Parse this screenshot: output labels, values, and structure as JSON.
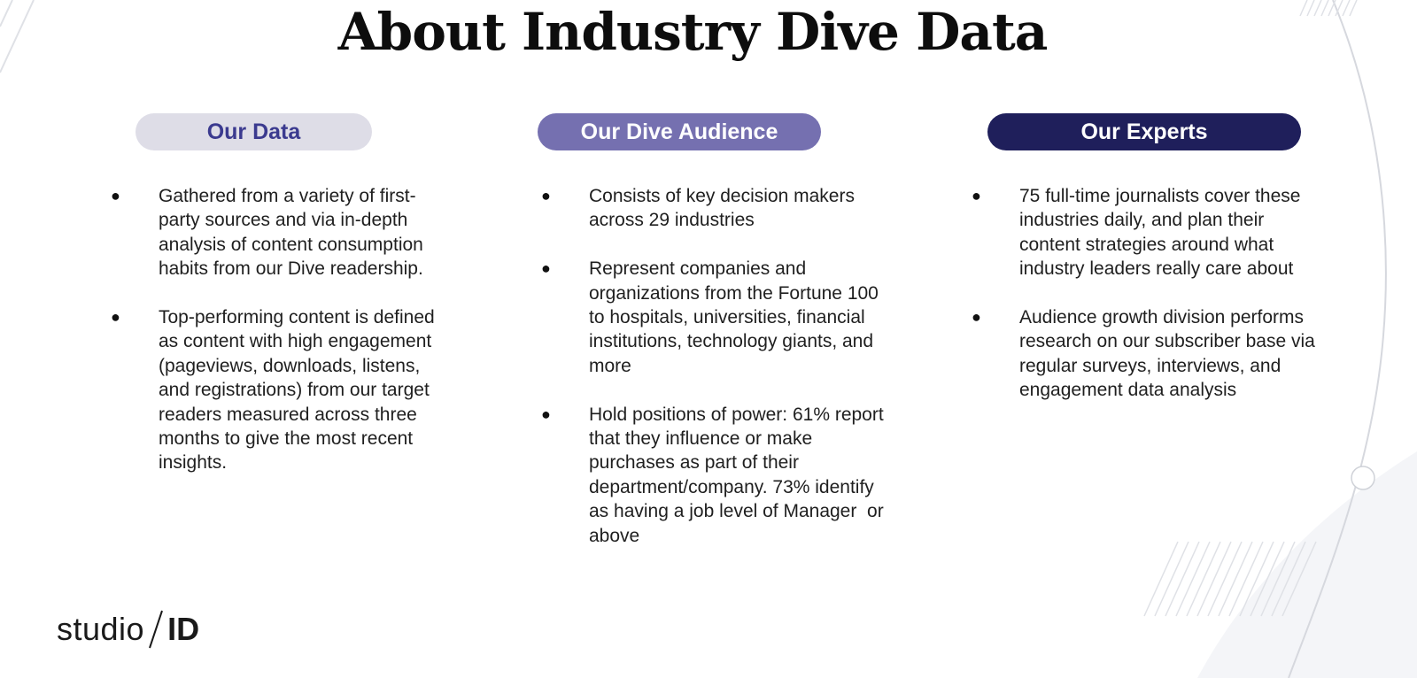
{
  "title": "About Industry Dive Data",
  "columns": {
    "data": {
      "heading": "Our Data",
      "bullets": [
        "Gathered from a variety of first-party sources and via in-depth analysis of content consumption habits from our Dive readership.",
        "Top-performing content is defined as content with high engagement (pageviews, downloads, listens, and registrations) from our target readers measured across three months to give the most recent insights."
      ]
    },
    "audience": {
      "heading": "Our Dive Audience",
      "bullets": [
        "Consists of key decision makers  across 29 industries",
        "Represent companies and organizations from the Fortune 100 to hospitals, universities, financial institutions, technology giants, and more",
        "Hold positions of power: 61% report that they influence or make purchases as part of their department/company. 73% identify as having a job level of Manager  or above"
      ]
    },
    "experts": {
      "heading": "Our Experts",
      "bullets": [
        "75 full-time journalists cover these industries daily, and plan their content strategies around what industry leaders really care about",
        "Audience growth division performs research on our subscriber base via regular surveys, interviews, and engagement data analysis"
      ]
    }
  },
  "logo": {
    "word": "studio",
    "mark": "ID"
  },
  "colors": {
    "pill_data_bg": "#dedde7",
    "pill_audience_bg": "#7570b0",
    "pill_experts_bg": "#1f1f5b"
  }
}
